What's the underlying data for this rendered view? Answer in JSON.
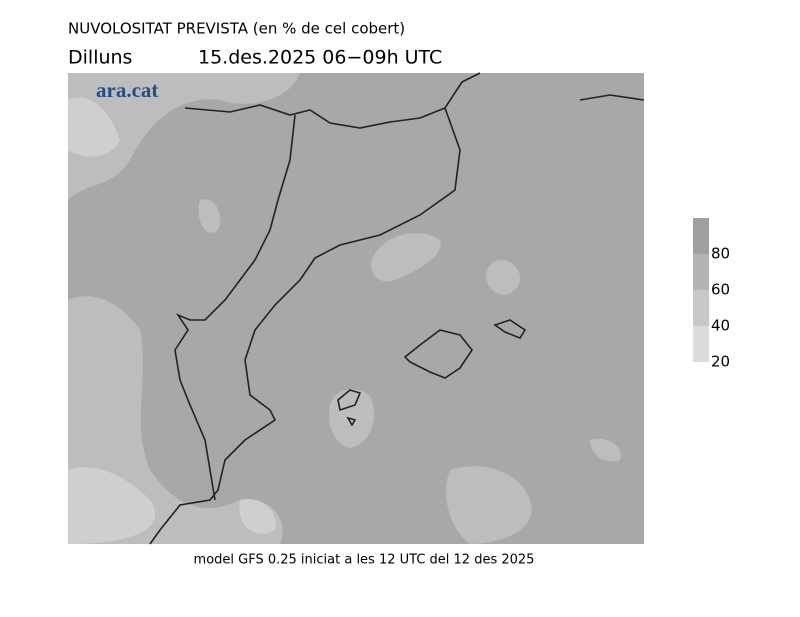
{
  "title": "NUVOLOSITAT PREVISTA (en % de cel cobert)",
  "day": "Dilluns",
  "date": "15.des.2025 06−09h UTC",
  "logo": "ara.cat",
  "footer": "model GFS 0.25 iniciat a les 12 UTC del 12 des 2025",
  "legend": {
    "ticks": [
      20,
      40,
      60,
      80
    ],
    "colors": [
      "#dcdcdc",
      "#c8c8c8",
      "#b4b4b4",
      "#a0a0a0"
    ]
  }
}
